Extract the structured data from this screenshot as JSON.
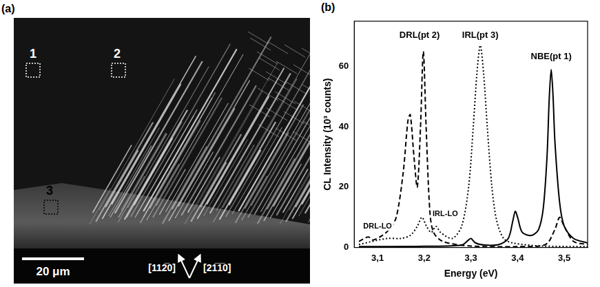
{
  "image_panel": {
    "letter": "(a)",
    "markers": [
      "1",
      "2",
      "3"
    ],
    "scale_bar": "20 μm",
    "directions": [
      "[112̅0]",
      "[21̅1̅0]"
    ]
  },
  "chart_data": {
    "letter": "(b)",
    "type": "line",
    "x_label": "Energy (eV)",
    "y_label": "CL Intensity (10³ counts)",
    "xlim": [
      3.05,
      3.55
    ],
    "xticks": [
      {
        "value": 3.1,
        "label": "3,1"
      },
      {
        "value": 3.2,
        "label": "3,2"
      },
      {
        "value": 3.3,
        "label": "3,3"
      },
      {
        "value": 3.4,
        "label": "3,4"
      },
      {
        "value": 3.5,
        "label": "3,5"
      }
    ],
    "ylim": [
      0,
      75
    ],
    "yticks": [
      0,
      20,
      40,
      60
    ],
    "grid": false,
    "series": [
      {
        "name": "NBE(pt 1)",
        "color": "#000000",
        "line_style": "solid",
        "x": [
          3.06,
          3.1,
          3.2,
          3.28,
          3.295,
          3.3,
          3.31,
          3.33,
          3.36,
          3.38,
          3.39,
          3.395,
          3.4,
          3.41,
          3.43,
          3.445,
          3.455,
          3.463,
          3.468,
          3.472,
          3.476,
          3.48,
          3.49,
          3.5,
          3.52,
          3.55
        ],
        "values": [
          0.3,
          0.3,
          0.4,
          0.8,
          2.5,
          3,
          1.5,
          0.8,
          1,
          3,
          9,
          12,
          10,
          5,
          4,
          6,
          13,
          30,
          50,
          59,
          50,
          35,
          15,
          7,
          3,
          1.5
        ]
      },
      {
        "name": "IRL(pt 3)",
        "color": "#000000",
        "line_style": "dotted",
        "x": [
          3.06,
          3.12,
          3.15,
          3.17,
          3.185,
          3.195,
          3.205,
          3.215,
          3.225,
          3.235,
          3.26,
          3.28,
          3.295,
          3.305,
          3.313,
          3.32,
          3.327,
          3.335,
          3.345,
          3.355,
          3.37,
          3.39,
          3.45,
          3.55
        ],
        "values": [
          1,
          3,
          3,
          4,
          7,
          10,
          7,
          5,
          7,
          5,
          3,
          7,
          20,
          40,
          58,
          67,
          58,
          40,
          20,
          9,
          3,
          1.5,
          0.5,
          0.3
        ]
      },
      {
        "name": "DRL(pt 2)",
        "color": "#000000",
        "line_style": "dashed",
        "x": [
          3.06,
          3.08,
          3.09,
          3.11,
          3.125,
          3.14,
          3.155,
          3.165,
          3.17,
          3.178,
          3.185,
          3.192,
          3.198,
          3.204,
          3.212,
          3.22,
          3.24,
          3.3,
          3.4,
          3.46,
          3.48,
          3.49,
          3.5,
          3.52,
          3.55
        ],
        "values": [
          2,
          3.5,
          2.5,
          4,
          6,
          10,
          25,
          42,
          44,
          30,
          20,
          40,
          65,
          40,
          12,
          5,
          2,
          0.5,
          0.3,
          1,
          6,
          10,
          7,
          2,
          1
        ]
      }
    ],
    "annotations": [
      {
        "text": "DRL(pt 2)",
        "x": 3.19,
        "y": 69
      },
      {
        "text": "IRL(pt 3)",
        "x": 3.32,
        "y": 69
      },
      {
        "text": "NBE(pt 1)",
        "x": 3.472,
        "y": 62
      },
      {
        "text": "DRL-LO",
        "x": 3.1,
        "y": 6
      },
      {
        "text": "IRL-LO",
        "x": 3.245,
        "y": 10
      }
    ]
  }
}
